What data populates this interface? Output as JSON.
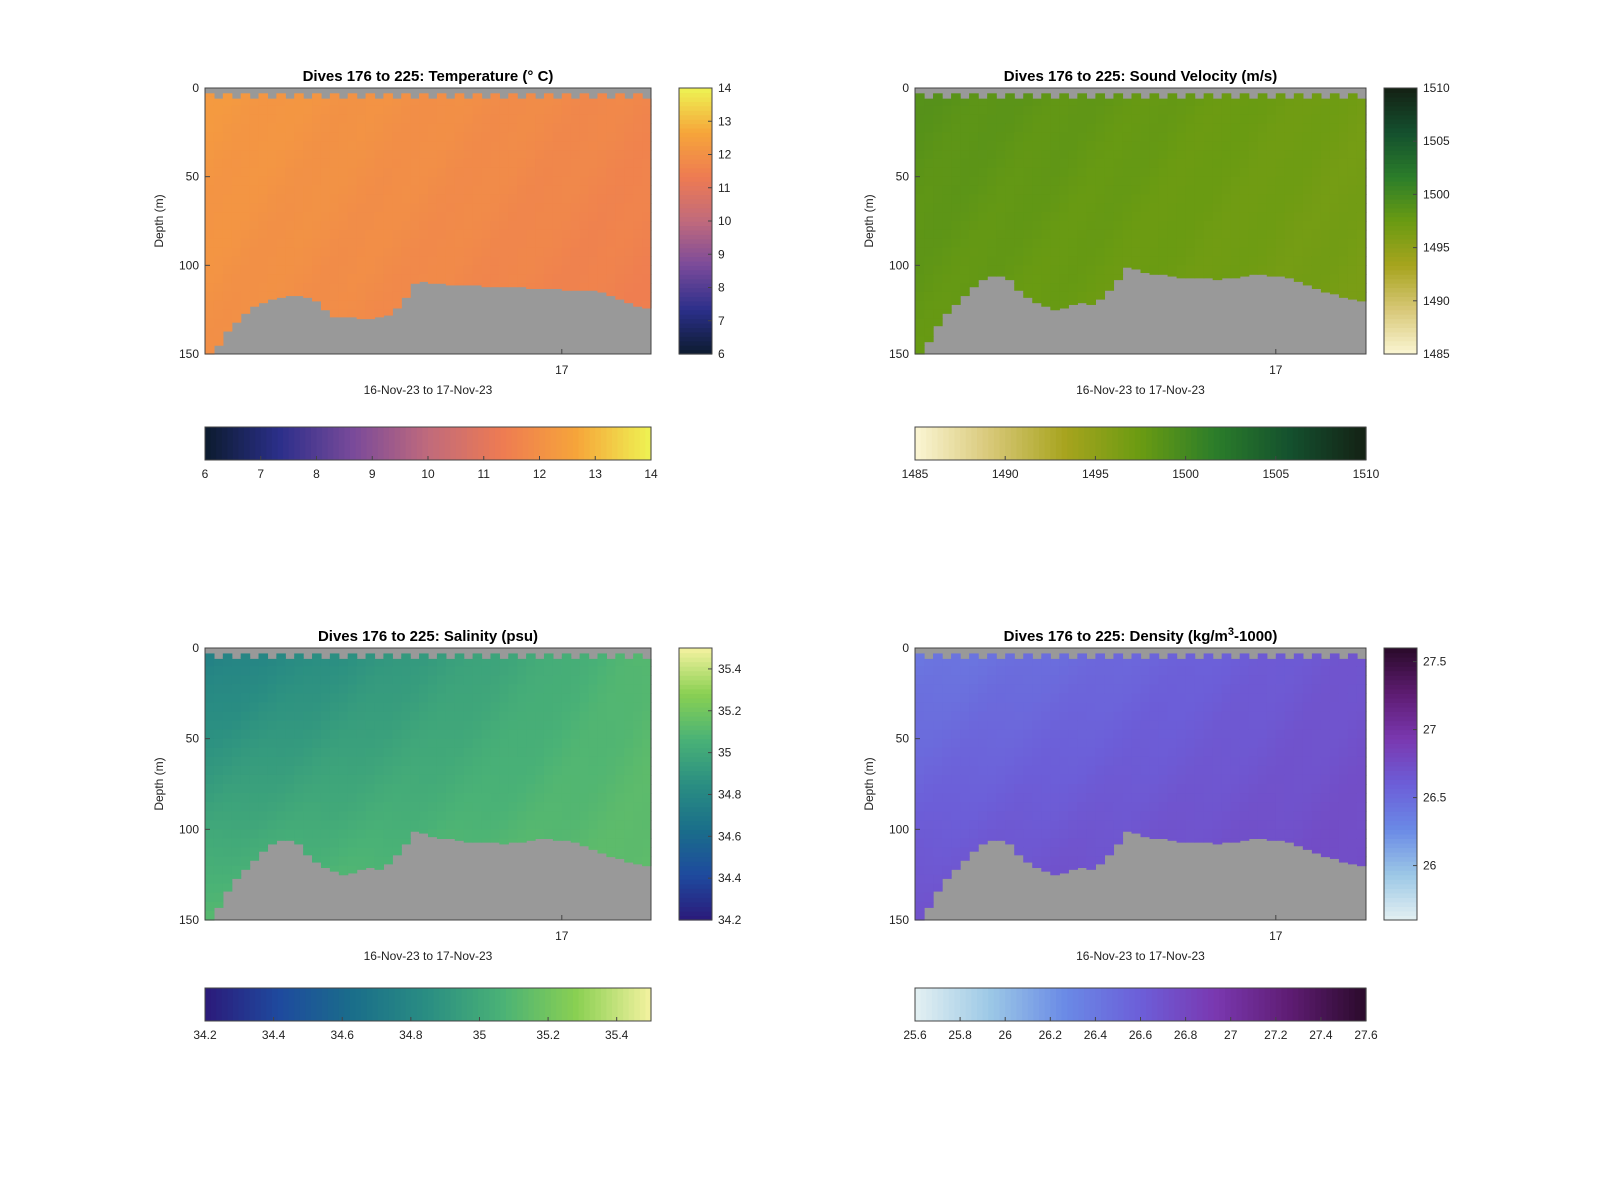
{
  "chart_data": [
    {
      "type": "heatmap",
      "variable": "temperature",
      "title": "Dives 176 to 225: Temperature (° C)",
      "xlabel": "16-Nov-23 to 17-Nov-23",
      "ylabel": "Depth (m)",
      "ylim": [
        0,
        150
      ],
      "y_reversed": true,
      "yticks": [
        "0",
        "50",
        "100",
        "150"
      ],
      "xticks": [
        "17"
      ],
      "clim": [
        6,
        14
      ],
      "colorbar_ticks": [
        "6",
        "7",
        "8",
        "9",
        "10",
        "11",
        "12",
        "13",
        "14"
      ],
      "horizontal_colorbar_ticks": [
        "6",
        "7",
        "8",
        "9",
        "10",
        "11",
        "12",
        "13",
        "14"
      ],
      "colormap": [
        "#0c1b2e",
        "#2b2f8a",
        "#7a4a9a",
        "#c06a7c",
        "#ee7b52",
        "#f6a53a",
        "#eef353"
      ],
      "no_data_color": "#999999",
      "dives": 50,
      "x_fraction_17nov": 0.8,
      "bottom_depth_m": [
        150,
        145,
        137,
        132,
        127,
        123,
        121,
        119,
        118,
        117,
        117,
        118,
        120,
        125,
        129,
        129,
        129,
        130,
        130,
        129,
        128,
        124,
        118,
        110,
        109,
        110,
        110,
        111,
        111,
        111,
        111,
        112,
        112,
        112,
        112,
        112,
        113,
        113,
        113,
        113,
        114,
        114,
        114,
        114,
        115,
        117,
        119,
        121,
        123,
        124
      ],
      "surface_value": 12.3,
      "deep_value": 12.0,
      "surface_value_late": 11.7,
      "deep_value_late": 11.4
    },
    {
      "type": "heatmap",
      "variable": "sound_velocity",
      "title": "Dives 176 to 225: Sound Velocity (m/s)",
      "xlabel": "16-Nov-23 to 17-Nov-23",
      "ylabel": "Depth (m)",
      "ylim": [
        0,
        150
      ],
      "y_reversed": true,
      "yticks": [
        "0",
        "50",
        "100",
        "150"
      ],
      "xticks": [
        "17"
      ],
      "clim": [
        1485,
        1510
      ],
      "colorbar_ticks": [
        "1485",
        "1490",
        "1495",
        "1500",
        "1505",
        "1510"
      ],
      "horizontal_colorbar_ticks": [
        "1485",
        "1490",
        "1495",
        "1500",
        "1505",
        "1510"
      ],
      "colormap": [
        "#fbf6d4",
        "#d8c878",
        "#a7a41e",
        "#6a9b12",
        "#2b7d2a",
        "#14502e",
        "#142114"
      ],
      "no_data_color": "#999999",
      "dives": 50,
      "x_fraction_17nov": 0.8,
      "bottom_depth_m": [
        150,
        143,
        134,
        127,
        122,
        117,
        112,
        108,
        106,
        106,
        108,
        114,
        118,
        121,
        123,
        125,
        124,
        122,
        121,
        122,
        119,
        114,
        108,
        101,
        102,
        104,
        105,
        105,
        106,
        107,
        107,
        107,
        107,
        108,
        107,
        107,
        106,
        105,
        105,
        106,
        106,
        107,
        109,
        111,
        113,
        115,
        116,
        118,
        119,
        120
      ],
      "surface_value": 1498.8,
      "deep_value": 1497.8,
      "surface_value_late": 1497.0,
      "deep_value_late": 1496.5
    },
    {
      "type": "heatmap",
      "variable": "salinity",
      "title": "Dives 176 to 225: Salinity (psu)",
      "xlabel": "16-Nov-23 to 17-Nov-23",
      "ylabel": "Depth (m)",
      "ylim": [
        0,
        150
      ],
      "y_reversed": true,
      "yticks": [
        "0",
        "50",
        "100",
        "150"
      ],
      "xticks": [
        "17"
      ],
      "clim": [
        34.2,
        35.5
      ],
      "colorbar_ticks": [
        "34.2",
        "34.4",
        "34.6",
        "34.8",
        "35",
        "35.2",
        "35.4"
      ],
      "horizontal_colorbar_ticks": [
        "34.2",
        "34.4",
        "34.6",
        "34.8",
        "35",
        "35.2",
        "35.4"
      ],
      "colormap": [
        "#2b1a7a",
        "#1e4a9e",
        "#1a6e8a",
        "#2a8e82",
        "#4ab276",
        "#8ad052",
        "#f4f2a0"
      ],
      "no_data_color": "#999999",
      "dives": 50,
      "x_fraction_17nov": 0.8,
      "bottom_depth_m": [
        150,
        143,
        134,
        127,
        122,
        117,
        112,
        108,
        106,
        106,
        108,
        114,
        118,
        121,
        123,
        125,
        124,
        122,
        121,
        122,
        119,
        114,
        108,
        101,
        102,
        104,
        105,
        105,
        106,
        107,
        107,
        107,
        107,
        108,
        107,
        107,
        106,
        105,
        105,
        106,
        106,
        107,
        109,
        111,
        113,
        115,
        116,
        118,
        119,
        120
      ],
      "surface_value": 34.75,
      "deep_value": 35.12,
      "surface_value_late": 35.1,
      "deep_value_late": 35.15
    },
    {
      "type": "heatmap",
      "variable": "density",
      "title": "Dives 176 to 225: Density (kg/m",
      "title_superscript": "3",
      "title_suffix": "-1000)",
      "xlabel": "16-Nov-23 to 17-Nov-23",
      "ylabel": "Depth (m)",
      "ylim": [
        0,
        150
      ],
      "y_reversed": true,
      "yticks": [
        "0",
        "50",
        "100",
        "150"
      ],
      "xticks": [
        "17"
      ],
      "clim": [
        25.6,
        27.6
      ],
      "colorbar_ticks": [
        "26",
        "26.5",
        "27",
        "27.5"
      ],
      "horizontal_colorbar_ticks": [
        "25.6",
        "25.8",
        "26",
        "26.2",
        "26.4",
        "26.6",
        "26.8",
        "27",
        "27.2",
        "27.4",
        "27.6"
      ],
      "colormap": [
        "#e4f0f2",
        "#9cc8e6",
        "#6a8ae6",
        "#6c5ed8",
        "#7a38b0",
        "#5e1c72",
        "#2a0a2a"
      ],
      "no_data_color": "#999999",
      "dives": 50,
      "x_fraction_17nov": 0.8,
      "bottom_depth_m": [
        150,
        143,
        134,
        127,
        122,
        117,
        112,
        108,
        106,
        106,
        108,
        114,
        118,
        121,
        123,
        125,
        124,
        122,
        121,
        122,
        119,
        114,
        108,
        101,
        102,
        104,
        105,
        105,
        106,
        107,
        107,
        107,
        107,
        108,
        107,
        107,
        106,
        105,
        105,
        106,
        106,
        107,
        109,
        111,
        113,
        115,
        116,
        118,
        119,
        120
      ],
      "surface_value": 26.4,
      "deep_value": 26.72,
      "surface_value_late": 26.68,
      "deep_value_late": 26.78
    }
  ]
}
